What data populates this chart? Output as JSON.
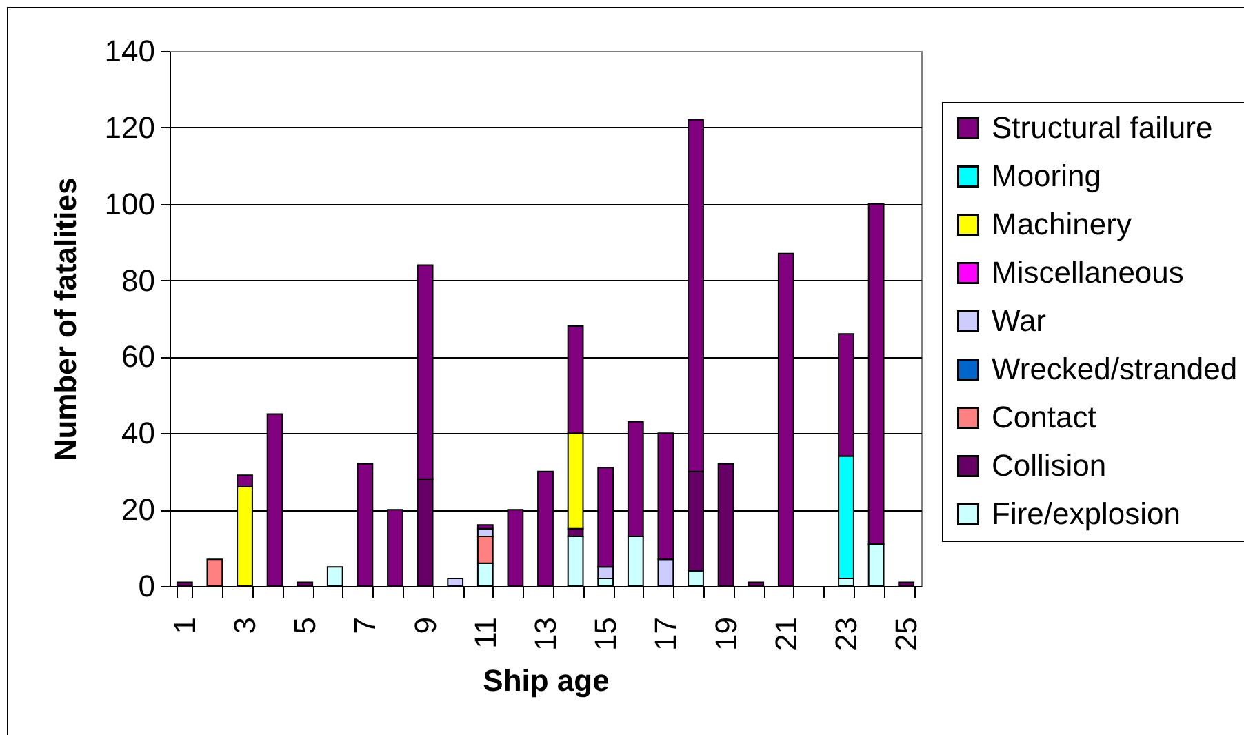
{
  "chart_data": {
    "type": "bar",
    "stacked": true,
    "xlabel": "Ship age",
    "ylabel": "Number of fatalities",
    "categories": [
      "1",
      null,
      "3",
      null,
      "5",
      null,
      "7",
      null,
      "9",
      null,
      "11",
      null,
      "13",
      null,
      "15",
      null,
      "17",
      null,
      "19",
      null,
      "21",
      null,
      "23",
      null,
      "25"
    ],
    "series": [
      {
        "name": "Fire/explosion",
        "color": "#ccffff",
        "values": [
          null,
          null,
          null,
          null,
          null,
          5,
          null,
          null,
          null,
          null,
          6,
          null,
          null,
          13,
          2,
          13,
          null,
          4,
          null,
          null,
          null,
          null,
          2,
          11,
          null
        ]
      },
      {
        "name": "Collision",
        "color": "#660066",
        "values": [
          1,
          null,
          null,
          null,
          1,
          null,
          null,
          null,
          28,
          null,
          null,
          null,
          null,
          2,
          null,
          null,
          null,
          26,
          32,
          1,
          null,
          null,
          null,
          null,
          1
        ]
      },
      {
        "name": "Contact",
        "color": "#ff8080",
        "values": [
          null,
          7,
          null,
          null,
          null,
          null,
          null,
          null,
          null,
          null,
          7,
          null,
          null,
          null,
          null,
          null,
          null,
          null,
          null,
          null,
          null,
          null,
          null,
          null,
          null
        ]
      },
      {
        "name": "Wrecked/stranded",
        "color": "#0066cc",
        "values": [
          null,
          null,
          null,
          null,
          null,
          null,
          null,
          null,
          null,
          null,
          null,
          null,
          null,
          null,
          null,
          null,
          null,
          null,
          null,
          null,
          null,
          null,
          null,
          null,
          null
        ]
      },
      {
        "name": "War",
        "color": "#ccccff",
        "values": [
          null,
          null,
          null,
          null,
          null,
          null,
          null,
          null,
          null,
          2,
          2,
          null,
          null,
          null,
          3,
          null,
          7,
          null,
          null,
          null,
          null,
          null,
          null,
          null,
          null
        ]
      },
      {
        "name": "Miscellaneous",
        "color": "#ff00ff",
        "values": [
          null,
          null,
          null,
          null,
          null,
          null,
          null,
          null,
          null,
          null,
          null,
          null,
          null,
          null,
          null,
          null,
          null,
          null,
          null,
          null,
          null,
          null,
          null,
          null,
          null
        ]
      },
      {
        "name": "Machinery",
        "color": "#ffff00",
        "values": [
          null,
          null,
          26,
          null,
          null,
          null,
          null,
          null,
          null,
          null,
          null,
          null,
          null,
          25,
          null,
          null,
          null,
          null,
          null,
          null,
          null,
          null,
          null,
          null,
          null
        ]
      },
      {
        "name": "Mooring",
        "color": "#00ffff",
        "values": [
          null,
          null,
          null,
          null,
          null,
          null,
          null,
          null,
          null,
          null,
          null,
          null,
          null,
          null,
          null,
          null,
          null,
          null,
          null,
          null,
          null,
          null,
          32,
          null,
          null
        ]
      },
      {
        "name": "Structural failure",
        "color": "#800080",
        "values": [
          null,
          null,
          3,
          45,
          null,
          null,
          32,
          20,
          56,
          null,
          1,
          20,
          30,
          28,
          26,
          30,
          33,
          92,
          null,
          null,
          87,
          null,
          32,
          89,
          null
        ]
      }
    ],
    "ylim": [
      0,
      140
    ],
    "yticks": [
      0,
      20,
      40,
      60,
      80,
      100,
      120,
      140
    ],
    "grid": "y",
    "legend": "right"
  }
}
